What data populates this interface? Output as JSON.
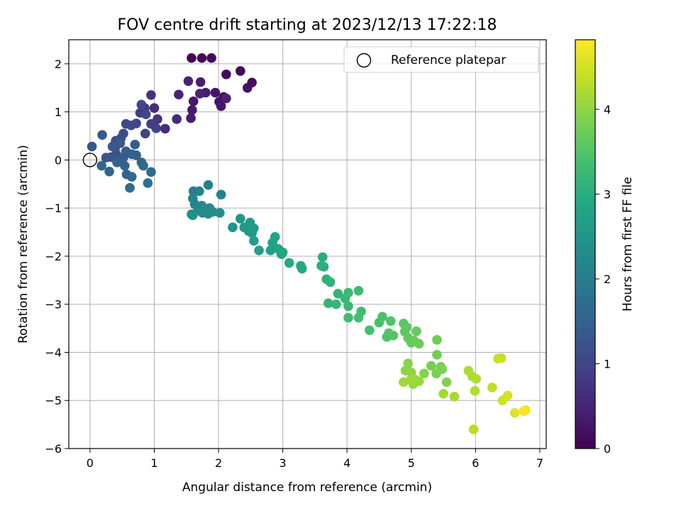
{
  "chart_data": {
    "type": "scatter",
    "title": "FOV centre drift starting at 2023/12/13 17:22:18",
    "xlabel": "Angular distance from reference (arcmin)",
    "ylabel": "Rotation from reference (arcmin)",
    "xlim": [
      -0.33,
      7.1
    ],
    "ylim": [
      -6.0,
      2.5
    ],
    "xticks": [
      "0",
      "1",
      "2",
      "3",
      "4",
      "5",
      "6",
      "7"
    ],
    "yticks": [
      "2",
      "1",
      "0",
      "−1",
      "−2",
      "−3",
      "−4",
      "−5",
      "−6"
    ],
    "grid": true,
    "colormap": "viridis",
    "colorbar": {
      "label": "Hours from first FF file",
      "range": [
        0,
        4.82
      ],
      "ticks": [
        "0",
        "1",
        "2",
        "3",
        "4"
      ]
    },
    "legend": {
      "placement": "top-right",
      "entries": [
        "Reference platepar"
      ]
    },
    "reference_point": [
      0,
      0
    ],
    "points": [
      [
        1.58,
        2.12,
        0.05
      ],
      [
        1.74,
        2.12,
        0.08
      ],
      [
        1.89,
        2.12,
        0.1
      ],
      [
        2.34,
        1.85,
        0.12
      ],
      [
        2.12,
        1.78,
        0.15
      ],
      [
        2.52,
        1.61,
        0.18
      ],
      [
        2.45,
        1.5,
        0.2
      ],
      [
        2.08,
        1.31,
        0.22
      ],
      [
        2.01,
        1.21,
        0.25
      ],
      [
        1.95,
        1.4,
        0.28
      ],
      [
        2.04,
        1.12,
        0.3
      ],
      [
        1.61,
        1.22,
        0.32
      ],
      [
        1.59,
        1.04,
        0.35
      ],
      [
        1.57,
        0.87,
        0.38
      ],
      [
        1.8,
        1.4,
        0.4
      ],
      [
        1.72,
        1.62,
        0.42
      ],
      [
        1.53,
        1.64,
        0.45
      ],
      [
        1.71,
        1.38,
        0.48
      ],
      [
        1.38,
        1.36,
        0.5
      ],
      [
        2.12,
        1.28,
        0.45
      ],
      [
        1.35,
        0.85,
        0.55
      ],
      [
        1.17,
        0.65,
        0.6
      ],
      [
        1.0,
        1.08,
        0.65
      ],
      [
        0.95,
        1.35,
        0.7
      ],
      [
        1.05,
        0.85,
        0.75
      ],
      [
        0.85,
        1.08,
        0.8
      ],
      [
        0.78,
        0.98,
        0.85
      ],
      [
        0.95,
        0.75,
        0.9
      ],
      [
        1.03,
        0.66,
        0.92
      ],
      [
        0.86,
        0.55,
        0.95
      ],
      [
        0.72,
        0.76,
        0.98
      ],
      [
        0.8,
        1.15,
        1.0
      ],
      [
        0.87,
        0.95,
        1.02
      ],
      [
        0.64,
        0.72,
        1.05
      ],
      [
        0.56,
        0.75,
        1.08
      ],
      [
        0.52,
        0.55,
        1.1
      ],
      [
        0.48,
        0.45,
        1.12
      ],
      [
        0.4,
        0.4,
        1.15
      ],
      [
        0.39,
        0.25,
        1.18
      ],
      [
        0.41,
        0.12,
        1.2
      ],
      [
        0.33,
        0.06,
        1.22
      ],
      [
        0.25,
        0.05,
        1.25
      ],
      [
        0.03,
        0.28,
        1.28
      ],
      [
        0.19,
        0.52,
        1.3
      ],
      [
        0.35,
        0.28,
        1.32
      ],
      [
        0.47,
        0.35,
        1.35
      ],
      [
        0.56,
        0.18,
        1.38
      ],
      [
        0.52,
        0.05,
        1.4
      ],
      [
        0.7,
        0.32,
        1.42
      ],
      [
        0.65,
        0.12,
        1.45
      ],
      [
        0.72,
        0.1,
        1.48
      ],
      [
        0.42,
        -0.05,
        1.5
      ],
      [
        0.54,
        -0.12,
        1.52
      ],
      [
        0.3,
        -0.24,
        1.55
      ],
      [
        0.18,
        -0.12,
        1.58
      ],
      [
        0.57,
        -0.3,
        1.6
      ],
      [
        0.65,
        -0.35,
        1.62
      ],
      [
        0.83,
        -0.12,
        1.65
      ],
      [
        0.8,
        -0.05,
        1.62
      ],
      [
        0.95,
        -0.25,
        1.68
      ],
      [
        0.62,
        -0.58,
        1.7
      ],
      [
        0.9,
        -0.48,
        1.72
      ],
      [
        1.61,
        -0.65,
        2.05
      ],
      [
        1.7,
        -0.65,
        2.08
      ],
      [
        1.84,
        -0.52,
        2.1
      ],
      [
        2.04,
        -0.72,
        2.12
      ],
      [
        1.6,
        -0.8,
        2.15
      ],
      [
        1.63,
        -0.92,
        2.18
      ],
      [
        1.74,
        -0.95,
        2.2
      ],
      [
        1.86,
        -1.0,
        2.22
      ],
      [
        1.91,
        -1.08,
        2.25
      ],
      [
        1.68,
        -1.05,
        2.28
      ],
      [
        1.58,
        -1.13,
        2.3
      ],
      [
        1.75,
        -1.1,
        2.32
      ],
      [
        1.84,
        -1.12,
        2.35
      ],
      [
        2.02,
        -1.1,
        2.38
      ],
      [
        1.6,
        -1.15,
        2.4
      ],
      [
        2.22,
        -1.4,
        2.5
      ],
      [
        2.34,
        -1.22,
        2.52
      ],
      [
        2.4,
        -1.4,
        2.55
      ],
      [
        2.47,
        -1.48,
        2.58
      ],
      [
        2.52,
        -1.52,
        2.6
      ],
      [
        2.49,
        -1.3,
        2.62
      ],
      [
        2.55,
        -1.42,
        2.65
      ],
      [
        2.55,
        -1.68,
        2.68
      ],
      [
        2.63,
        -1.88,
        2.7
      ],
      [
        2.81,
        -1.88,
        2.72
      ],
      [
        2.84,
        -1.72,
        2.75
      ],
      [
        2.88,
        -1.6,
        2.78
      ],
      [
        2.93,
        -1.85,
        2.8
      ],
      [
        2.98,
        -1.96,
        2.82
      ],
      [
        3.0,
        -1.92,
        2.85
      ],
      [
        3.1,
        -2.14,
        2.88
      ],
      [
        3.28,
        -2.2,
        2.9
      ],
      [
        3.3,
        -2.26,
        2.92
      ],
      [
        3.62,
        -2.02,
        3.0
      ],
      [
        3.6,
        -2.2,
        3.02
      ],
      [
        3.64,
        -2.22,
        3.05
      ],
      [
        3.68,
        -2.48,
        3.08
      ],
      [
        3.74,
        -2.54,
        3.1
      ],
      [
        3.86,
        -2.78,
        3.12
      ],
      [
        3.71,
        -2.98,
        3.15
      ],
      [
        3.83,
        -3.0,
        3.18
      ],
      [
        3.97,
        -2.88,
        3.2
      ],
      [
        4.02,
        -3.04,
        3.22
      ],
      [
        4.02,
        -2.76,
        3.25
      ],
      [
        4.18,
        -2.72,
        3.28
      ],
      [
        4.02,
        -3.28,
        3.3
      ],
      [
        4.22,
        -3.15,
        3.32
      ],
      [
        4.18,
        -3.28,
        3.35
      ],
      [
        4.35,
        -3.54,
        3.38
      ],
      [
        4.5,
        -3.38,
        3.4
      ],
      [
        4.55,
        -3.26,
        3.42
      ],
      [
        4.68,
        -3.35,
        3.45
      ],
      [
        4.62,
        -3.68,
        3.48
      ],
      [
        4.65,
        -3.6,
        3.5
      ],
      [
        4.72,
        -3.65,
        3.52
      ],
      [
        4.88,
        -3.4,
        3.55
      ],
      [
        4.9,
        -3.57,
        3.58
      ],
      [
        4.93,
        -3.48,
        3.6
      ],
      [
        4.95,
        -3.7,
        3.62
      ],
      [
        5.0,
        -3.8,
        3.65
      ],
      [
        5.08,
        -3.56,
        3.68
      ],
      [
        5.04,
        -3.75,
        3.7
      ],
      [
        5.12,
        -3.82,
        3.72
      ],
      [
        5.4,
        -3.74,
        3.75
      ],
      [
        5.4,
        -4.05,
        3.78
      ],
      [
        5.46,
        -4.3,
        3.8
      ],
      [
        5.31,
        -4.28,
        3.82
      ],
      [
        5.39,
        -4.44,
        3.85
      ],
      [
        5.48,
        -4.35,
        3.88
      ],
      [
        5.55,
        -4.62,
        3.9
      ],
      [
        5.2,
        -4.44,
        3.92
      ],
      [
        4.95,
        -4.23,
        3.95
      ],
      [
        4.91,
        -4.38,
        3.98
      ],
      [
        5.0,
        -4.42,
        4.0
      ],
      [
        5.05,
        -4.56,
        4.02
      ],
      [
        5.03,
        -4.66,
        4.05
      ],
      [
        5.12,
        -4.6,
        4.08
      ],
      [
        5.0,
        -4.55,
        4.1
      ],
      [
        4.88,
        -4.62,
        4.12
      ],
      [
        5.5,
        -4.86,
        4.15
      ],
      [
        5.67,
        -4.92,
        4.18
      ],
      [
        5.89,
        -4.38,
        4.2
      ],
      [
        5.95,
        -4.5,
        4.22
      ],
      [
        6.01,
        -4.55,
        4.25
      ],
      [
        5.99,
        -4.8,
        4.28
      ],
      [
        5.97,
        -5.6,
        4.3
      ],
      [
        6.26,
        -4.73,
        4.35
      ],
      [
        6.35,
        -4.13,
        4.4
      ],
      [
        6.4,
        -4.12,
        4.42
      ],
      [
        6.42,
        -5.0,
        4.45
      ],
      [
        6.5,
        -4.9,
        4.5
      ],
      [
        6.61,
        -5.26,
        4.6
      ],
      [
        6.75,
        -5.22,
        4.75
      ],
      [
        6.78,
        -5.2,
        4.78
      ]
    ]
  }
}
